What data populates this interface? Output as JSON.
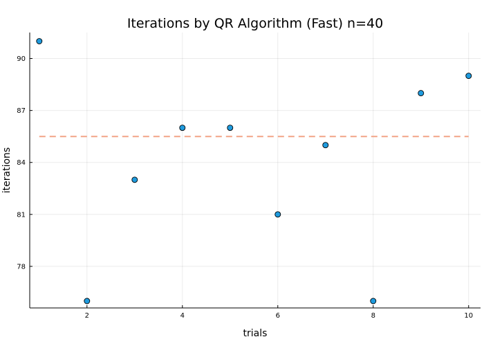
{
  "chart_data": {
    "type": "scatter",
    "title": "Iterations by QR Algorithm (Fast)  n=40",
    "xlabel": "trials",
    "ylabel": "iterations",
    "xlim": [
      0.8,
      10.25
    ],
    "ylim": [
      75.6,
      91.5
    ],
    "xticks": [
      2,
      4,
      6,
      8,
      10
    ],
    "yticks": [
      78,
      81,
      84,
      87,
      90
    ],
    "grid": true,
    "legend": "none",
    "series": [
      {
        "type": "scatter",
        "color": "#1f9bde",
        "x": [
          1,
          2,
          3,
          4,
          5,
          6,
          7,
          8,
          9,
          10
        ],
        "y": [
          91,
          76,
          83,
          86,
          86,
          81,
          85,
          76,
          88,
          89
        ]
      },
      {
        "type": "line",
        "style": "dashed",
        "color": "#f2a486",
        "x": [
          1,
          10
        ],
        "y": [
          85.5,
          85.5
        ]
      }
    ]
  }
}
